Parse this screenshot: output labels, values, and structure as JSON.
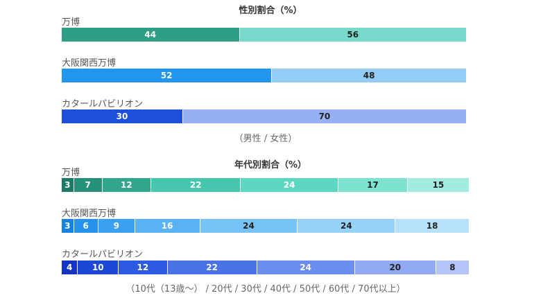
{
  "chart_data": [
    {
      "type": "bar",
      "stacked": true,
      "orientation": "horizontal",
      "title": "性別割合（%）",
      "note": "（男性 / 女性）",
      "rows": [
        {
          "label": "万博",
          "values": [
            44,
            56
          ],
          "colors": [
            "#2e9e86",
            "#78dacb"
          ],
          "text_colors": [
            "#ffffff",
            "#222222"
          ]
        },
        {
          "label": "大阪関西万博",
          "values": [
            52,
            48
          ],
          "colors": [
            "#2196ee",
            "#93cdf6"
          ],
          "text_colors": [
            "#ffffff",
            "#222222"
          ]
        },
        {
          "label": "カタールパビリオン",
          "values": [
            30,
            70
          ],
          "colors": [
            "#1d4fdc",
            "#97b0f4"
          ],
          "text_colors": [
            "#ffffff",
            "#222222"
          ]
        }
      ]
    },
    {
      "type": "bar",
      "stacked": true,
      "orientation": "horizontal",
      "title": "年代別割合（%）",
      "note": "（10代（13歳〜） / 20代 / 30代 / 40代 / 50代 / 60代 / 70代以上）",
      "rows": [
        {
          "label": "万博",
          "values": [
            3,
            7,
            12,
            22,
            24,
            17,
            15
          ],
          "colors": [
            "#1d7a64",
            "#279079",
            "#32a78d",
            "#45c6ad",
            "#5dd7c1",
            "#7ee2d1",
            "#a2ebdf"
          ],
          "text_colors": [
            "#ffffff",
            "#ffffff",
            "#ffffff",
            "#ffffff",
            "#ffffff",
            "#222222",
            "#222222"
          ]
        },
        {
          "label": "大阪関西万博",
          "values": [
            3,
            6,
            9,
            16,
            24,
            24,
            18
          ],
          "colors": [
            "#1683e0",
            "#2593ec",
            "#39a1f0",
            "#58b2f3",
            "#78c3f6",
            "#96d1f8",
            "#b7e0fa"
          ],
          "text_colors": [
            "#ffffff",
            "#ffffff",
            "#ffffff",
            "#ffffff",
            "#222222",
            "#222222",
            "#222222"
          ]
        },
        {
          "label": "カタールパビリオン",
          "values": [
            4,
            10,
            12,
            22,
            24,
            20,
            8
          ],
          "colors": [
            "#1233c4",
            "#1d48d6",
            "#2d5ae0",
            "#4a72e7",
            "#6a8dee",
            "#8fa9f3",
            "#b3c5f8"
          ],
          "text_colors": [
            "#ffffff",
            "#ffffff",
            "#ffffff",
            "#ffffff",
            "#ffffff",
            "#222222",
            "#222222"
          ]
        }
      ]
    }
  ]
}
